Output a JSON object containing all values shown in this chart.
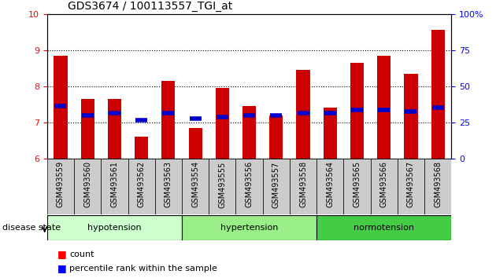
{
  "title": "GDS3674 / 100113557_TGI_at",
  "samples": [
    "GSM493559",
    "GSM493560",
    "GSM493561",
    "GSM493562",
    "GSM493563",
    "GSM493554",
    "GSM493555",
    "GSM493556",
    "GSM493557",
    "GSM493558",
    "GSM493564",
    "GSM493565",
    "GSM493566",
    "GSM493567",
    "GSM493568"
  ],
  "counts": [
    8.85,
    7.65,
    7.65,
    6.6,
    8.15,
    6.85,
    7.95,
    7.45,
    7.2,
    8.45,
    7.4,
    8.65,
    8.85,
    8.35,
    9.55
  ],
  "percentiles": [
    7.45,
    7.2,
    7.25,
    7.05,
    7.25,
    7.1,
    7.15,
    7.2,
    7.2,
    7.25,
    7.25,
    7.35,
    7.35,
    7.3,
    7.4
  ],
  "groups": [
    {
      "name": "hypotension",
      "indices": [
        0,
        1,
        2,
        3,
        4
      ],
      "color": "#CCFFCC"
    },
    {
      "name": "hypertension",
      "indices": [
        5,
        6,
        7,
        8,
        9
      ],
      "color": "#99EE88"
    },
    {
      "name": "normotension",
      "indices": [
        10,
        11,
        12,
        13,
        14
      ],
      "color": "#44CC44"
    }
  ],
  "ylim": [
    6,
    10
  ],
  "yticks_left": [
    6,
    7,
    8,
    9,
    10
  ],
  "right_ticks_pos": [
    6,
    7,
    8,
    9,
    10
  ],
  "right_ticks_labels": [
    "0",
    "25",
    "50",
    "75",
    "100%"
  ],
  "bar_color": "#CC0000",
  "percentile_color": "#0000CC",
  "bg_color": "#FFFFFF",
  "tick_bg_color": "#CCCCCC",
  "bar_width": 0.5,
  "title_fontsize": 10,
  "label_fontsize": 8,
  "tick_fontsize": 7
}
